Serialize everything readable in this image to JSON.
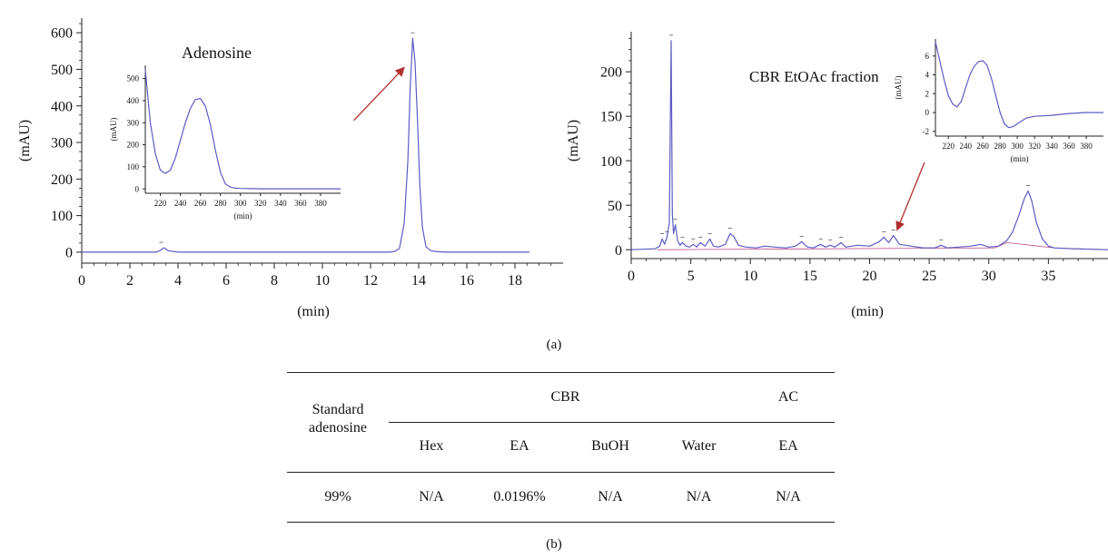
{
  "chart_data": [
    {
      "type": "line",
      "title": "Adenosine",
      "xlabel": "(min)",
      "ylabel": "(mAU)",
      "xlim": [
        0,
        20
      ],
      "ylim": [
        -30,
        640
      ],
      "xticks": [
        0,
        2,
        4,
        6,
        8,
        10,
        12,
        14,
        16,
        18
      ],
      "yticks": [
        0,
        100,
        200,
        300,
        400,
        500,
        600
      ],
      "series": [
        {
          "color": "#5b5bc4",
          "x": [
            0,
            3.1,
            3.3,
            3.4,
            3.6,
            4.0,
            12.8,
            13.0,
            13.2,
            13.4,
            13.55,
            13.65,
            13.75,
            13.85,
            13.95,
            14.05,
            14.15,
            14.3,
            14.5,
            14.8,
            15.2,
            18.6
          ],
          "y": [
            0,
            0,
            6,
            12,
            4,
            0,
            0,
            2,
            10,
            80,
            250,
            450,
            585,
            520,
            360,
            180,
            70,
            15,
            4,
            1,
            0,
            0
          ]
        }
      ],
      "peak_markers": [
        {
          "x": 3.3,
          "y": 12
        },
        {
          "x": 13.75,
          "y": 585
        }
      ],
      "annotations": [
        {
          "type": "arrow",
          "color": "#b03030",
          "from": [
            11.3,
            360
          ],
          "to": [
            13.4,
            505
          ]
        }
      ],
      "inset": {
        "type": "line",
        "xlabel": "(min)",
        "ylabel": "(mAU)",
        "xlim": [
          205,
          400
        ],
        "ylim": [
          -20,
          560
        ],
        "xticks": [
          220,
          240,
          260,
          280,
          300,
          320,
          340,
          360,
          380
        ],
        "yticks": [
          0,
          100,
          200,
          300,
          400,
          500
        ],
        "series": [
          {
            "color": "#5b5bc4",
            "x": [
              205,
              210,
              215,
              220,
              225,
              230,
              235,
              240,
              245,
              250,
              255,
              260,
              265,
              270,
              275,
              280,
              285,
              290,
              295,
              300,
              310,
              320,
              340,
              360,
              380,
              400
            ],
            "y": [
              540,
              300,
              160,
              85,
              70,
              85,
              140,
              220,
              300,
              365,
              405,
              410,
              375,
              290,
              175,
              75,
              22,
              8,
              3,
              2,
              1,
              0,
              0,
              0,
              0,
              0
            ]
          }
        ]
      }
    },
    {
      "type": "line",
      "title": "CBR EtOAc fraction",
      "xlabel": "(min)",
      "ylabel": "(mAU)",
      "xlim": [
        0,
        40
      ],
      "ylim": [
        -10,
        245
      ],
      "xticks": [
        0,
        5,
        10,
        15,
        20,
        25,
        30,
        35
      ],
      "yticks": [
        0,
        50,
        100,
        150,
        200
      ],
      "series": [
        {
          "color": "#5b5bc4",
          "x": [
            0,
            2.0,
            2.4,
            2.6,
            2.8,
            3.0,
            3.2,
            3.35,
            3.45,
            3.55,
            3.7,
            3.9,
            4.1,
            4.3,
            4.6,
            4.9,
            5.2,
            5.5,
            5.8,
            6.2,
            6.6,
            6.9,
            7.3,
            7.9,
            8.3,
            8.6,
            9.0,
            9.6,
            10.5,
            11.2,
            12.0,
            13.0,
            13.8,
            14.3,
            14.8,
            15.3,
            15.9,
            16.3,
            16.7,
            17.1,
            17.6,
            18.0,
            19.0,
            20.0,
            20.8,
            21.2,
            21.6,
            22.0,
            22.5,
            23.5,
            24.5,
            25.5,
            26.0,
            26.5,
            27.5,
            28.5,
            29.3,
            30.0,
            30.8,
            31.5,
            32.0,
            32.5,
            33.0,
            33.3,
            33.6,
            34.0,
            34.5,
            35.0,
            35.5,
            37.0,
            40.0
          ],
          "y": [
            0,
            1,
            4,
            12,
            6,
            14,
            30,
            235,
            40,
            18,
            28,
            10,
            5,
            8,
            4,
            3,
            6,
            3,
            8,
            4,
            12,
            4,
            3,
            6,
            18,
            15,
            5,
            3,
            2,
            4,
            3,
            2,
            4,
            9,
            3,
            2,
            6,
            3,
            5,
            3,
            8,
            3,
            5,
            4,
            9,
            14,
            8,
            16,
            6,
            4,
            2,
            2,
            5,
            2,
            3,
            4,
            6,
            3,
            4,
            10,
            20,
            38,
            58,
            66,
            55,
            30,
            12,
            4,
            2,
            1,
            0
          ]
        }
      ],
      "baseline": {
        "color": "#c04a8a"
      },
      "peak_markers": [
        {
          "x": 2.6,
          "y": 12
        },
        {
          "x": 3.0,
          "y": 14
        },
        {
          "x": 3.35,
          "y": 235
        },
        {
          "x": 3.7,
          "y": 28
        },
        {
          "x": 4.3,
          "y": 8
        },
        {
          "x": 5.2,
          "y": 6
        },
        {
          "x": 5.8,
          "y": 8
        },
        {
          "x": 6.6,
          "y": 12
        },
        {
          "x": 8.3,
          "y": 18
        },
        {
          "x": 14.3,
          "y": 9
        },
        {
          "x": 15.9,
          "y": 6
        },
        {
          "x": 16.7,
          "y": 5
        },
        {
          "x": 17.6,
          "y": 8
        },
        {
          "x": 21.2,
          "y": 14
        },
        {
          "x": 22.0,
          "y": 16
        },
        {
          "x": 26.0,
          "y": 5
        },
        {
          "x": 33.3,
          "y": 66
        }
      ],
      "annotations": [
        {
          "type": "arrow",
          "color": "#b03030",
          "from": [
            24.6,
            98
          ],
          "to": [
            22.3,
            22
          ]
        }
      ],
      "inset": {
        "type": "line",
        "xlabel": "(min)",
        "ylabel": "(mAU)",
        "xlim": [
          205,
          400
        ],
        "ylim": [
          -2.5,
          7.8
        ],
        "xticks": [
          220,
          240,
          260,
          280,
          300,
          320,
          340,
          360,
          380
        ],
        "yticks": [
          -2,
          0,
          2,
          4,
          6
        ],
        "series": [
          {
            "color": "#5b5bc4",
            "x": [
              205,
              210,
              215,
              220,
              225,
              230,
              235,
              240,
              245,
              250,
              255,
              260,
              265,
              270,
              275,
              280,
              285,
              290,
              295,
              300,
              305,
              310,
              320,
              330,
              340,
              360,
              380,
              400
            ],
            "y": [
              7.5,
              5.5,
              3.5,
              1.8,
              0.9,
              0.6,
              1.2,
              2.6,
              4.0,
              4.9,
              5.4,
              5.5,
              5.0,
              3.6,
              1.8,
              0.0,
              -1.2,
              -1.6,
              -1.5,
              -1.2,
              -0.9,
              -0.6,
              -0.4,
              -0.35,
              -0.3,
              -0.1,
              0.0,
              0.0
            ]
          }
        ]
      }
    }
  ],
  "panel_labels": {
    "a": "(a)",
    "b": "(b)"
  },
  "table": {
    "row_header": "Standard adenosine",
    "group_cbr": "CBR",
    "group_ac": "AC",
    "subheaders": [
      "Hex",
      "EA",
      "BuOH",
      "Water",
      "EA"
    ],
    "row": {
      "standard": "99%",
      "values": [
        "N/A",
        "0.0196%",
        "N/A",
        "N/A",
        "N/A"
      ]
    }
  }
}
